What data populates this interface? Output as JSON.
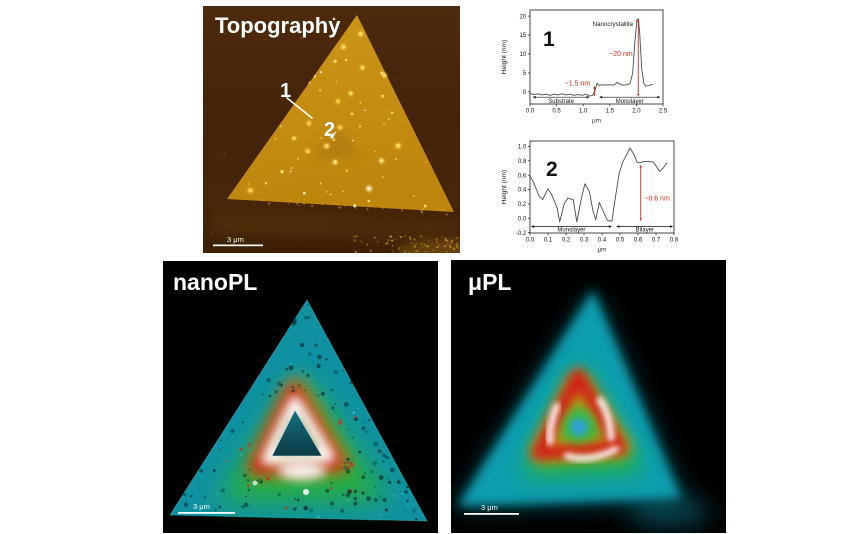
{
  "figure": {
    "background": "#ffffff"
  },
  "panels": {
    "topography": {
      "title": "Topography",
      "marker_1": "1",
      "marker_2": "2",
      "scale_bar": "3 μm"
    },
    "nanopl": {
      "title": "nanoPL",
      "scale_bar": "3 μm"
    },
    "upl": {
      "title": "μPL",
      "scale_bar": "3 μm"
    }
  },
  "colors": {
    "annotation_red": "#d42a1e",
    "profile_line": "#4a4a4a",
    "axis_black": "#1a1a1a",
    "topo_gold": "#c08a10",
    "topo_substrate": "#46240a",
    "pl_cyan": "#12a0b2",
    "pl_green": "#2db32d",
    "pl_red": "#cf1f14",
    "pl_hot_white": "#ffffff"
  },
  "chart_data": [
    {
      "id": "profile1",
      "type": "line",
      "label": "1",
      "xlabel": "μm",
      "ylabel": "Height (nm)",
      "xlim": [
        0,
        2.5
      ],
      "ylim": [
        -3.2,
        21.6
      ],
      "xticks": [
        {
          "v": 0.0,
          "label": "0.0"
        },
        {
          "v": 0.5,
          "label": "0.5"
        },
        {
          "v": 1.0,
          "label": "1.0"
        },
        {
          "v": 1.5,
          "label": "1.5"
        },
        {
          "v": 2.0,
          "label": "2.0"
        },
        {
          "v": 2.5,
          "label": "2.5"
        }
      ],
      "yticks": [
        {
          "v": 0,
          "label": "0"
        },
        {
          "v": 5,
          "label": "5"
        },
        {
          "v": 10,
          "label": "10"
        },
        {
          "v": 15,
          "label": "15"
        },
        {
          "v": 20,
          "label": "20"
        }
      ],
      "points": [
        [
          0,
          -0.4
        ],
        [
          0.08,
          -0.7
        ],
        [
          0.15,
          -0.5
        ],
        [
          0.22,
          -0.8
        ],
        [
          0.3,
          -0.6
        ],
        [
          0.38,
          -0.9
        ],
        [
          0.45,
          -0.6
        ],
        [
          0.52,
          -0.8
        ],
        [
          0.6,
          -0.5
        ],
        [
          0.68,
          -0.8
        ],
        [
          0.75,
          -0.6
        ],
        [
          0.82,
          -0.9
        ],
        [
          0.9,
          -0.7
        ],
        [
          0.98,
          -0.9
        ],
        [
          1.05,
          -0.6
        ],
        [
          1.12,
          -1.1
        ],
        [
          1.18,
          -0.9
        ],
        [
          1.22,
          0.3
        ],
        [
          1.26,
          2.3
        ],
        [
          1.3,
          1.7
        ],
        [
          1.36,
          1.9
        ],
        [
          1.42,
          1.8
        ],
        [
          1.5,
          1.9
        ],
        [
          1.58,
          1.8
        ],
        [
          1.64,
          2.5
        ],
        [
          1.7,
          1.9
        ],
        [
          1.76,
          1.8
        ],
        [
          1.82,
          1.9
        ],
        [
          1.88,
          2.2
        ],
        [
          1.93,
          5
        ],
        [
          1.97,
          13
        ],
        [
          2.01,
          19
        ],
        [
          2.035,
          19.3
        ],
        [
          2.06,
          16
        ],
        [
          2.1,
          6
        ],
        [
          2.14,
          2.2
        ],
        [
          2.18,
          1.5
        ],
        [
          2.24,
          1.7
        ],
        [
          2.3,
          2
        ]
      ],
      "annotations": [
        {
          "text": "Nanocrystallite",
          "x": 1.94,
          "y": 17.4,
          "anchor": "end",
          "color": "#1a1a1a",
          "size": 6.2
        },
        {
          "text": "~20 nm",
          "x": 1.93,
          "y": 9.4,
          "anchor": "end",
          "color": "#d42a1e",
          "size": 7
        },
        {
          "text": "~1.5 nm",
          "x": 1.13,
          "y": 1.7,
          "anchor": "end",
          "color": "#d42a1e",
          "size": 7
        }
      ],
      "varrows": [
        {
          "x": 2.035,
          "y1": -1.3,
          "y2": 19.2,
          "color": "#d42a1e"
        },
        {
          "x": 1.21,
          "y1": -1.2,
          "y2": 1.6,
          "color": "#d42a1e"
        }
      ],
      "regions": [
        {
          "text": "Substrate",
          "x1": 0.05,
          "x2": 1.12,
          "y_line": -1.4,
          "y_text": -2.9
        },
        {
          "text": "Monolayer",
          "x1": 1.3,
          "x2": 2.45,
          "y_line": -1.4,
          "y_text": -2.9
        }
      ]
    },
    {
      "id": "profile2",
      "type": "line",
      "label": "2",
      "xlabel": "μm",
      "ylabel": "Height (nm)",
      "xlim": [
        0,
        0.8
      ],
      "ylim": [
        -0.205,
        1.075
      ],
      "xticks": [
        {
          "v": 0.0,
          "label": "0.0"
        },
        {
          "v": 0.1,
          "label": "0.1"
        },
        {
          "v": 0.2,
          "label": "0.2"
        },
        {
          "v": 0.3,
          "label": "0.3"
        },
        {
          "v": 0.4,
          "label": "0.4"
        },
        {
          "v": 0.5,
          "label": "0.5"
        },
        {
          "v": 0.6,
          "label": "0.6"
        },
        {
          "v": 0.7,
          "label": "0.7"
        },
        {
          "v": 0.8,
          "label": "0.8"
        }
      ],
      "yticks": [
        {
          "v": -0.2,
          "label": "-0.2"
        },
        {
          "v": 0.0,
          "label": "0.0"
        },
        {
          "v": 0.2,
          "label": "0.2"
        },
        {
          "v": 0.4,
          "label": "0.4"
        },
        {
          "v": 0.6,
          "label": "0.6"
        },
        {
          "v": 0.8,
          "label": "0.8"
        },
        {
          "v": 1.0,
          "label": "1.0"
        }
      ],
      "points": [
        [
          0,
          0.59
        ],
        [
          0.02,
          0.5
        ],
        [
          0.05,
          0.31
        ],
        [
          0.07,
          0.26
        ],
        [
          0.1,
          0.41
        ],
        [
          0.12,
          0.33
        ],
        [
          0.15,
          0.15
        ],
        [
          0.165,
          -0.05
        ],
        [
          0.19,
          0.2
        ],
        [
          0.21,
          0.28
        ],
        [
          0.24,
          0.26
        ],
        [
          0.26,
          -0.05
        ],
        [
          0.285,
          0.27
        ],
        [
          0.305,
          0.48
        ],
        [
          0.33,
          0.37
        ],
        [
          0.35,
          0.1
        ],
        [
          0.365,
          -0.02
        ],
        [
          0.385,
          0.22
        ],
        [
          0.41,
          0.08
        ],
        [
          0.43,
          -0.03
        ],
        [
          0.455,
          -0.04
        ],
        [
          0.475,
          0.3
        ],
        [
          0.495,
          0.62
        ],
        [
          0.515,
          0.78
        ],
        [
          0.54,
          0.9
        ],
        [
          0.555,
          0.98
        ],
        [
          0.575,
          0.9
        ],
        [
          0.595,
          0.78
        ],
        [
          0.61,
          0.77
        ],
        [
          0.63,
          0.79
        ],
        [
          0.66,
          0.79
        ],
        [
          0.685,
          0.78
        ],
        [
          0.7,
          0.73
        ],
        [
          0.72,
          0.65
        ],
        [
          0.74,
          0.7
        ],
        [
          0.76,
          0.77
        ]
      ],
      "annotations": [
        {
          "text": "~0.6 nm",
          "x": 0.635,
          "y": 0.25,
          "anchor": "start",
          "color": "#d42a1e",
          "size": 7
        }
      ],
      "varrows": [
        {
          "x": 0.615,
          "y1": -0.04,
          "y2": 0.745,
          "color": "#d42a1e"
        }
      ],
      "regions": [
        {
          "text": "Monolayer",
          "x1": 0.005,
          "x2": 0.455,
          "y_line": -0.115,
          "y_text": -0.185
        },
        {
          "text": "Bilayer",
          "x1": 0.48,
          "x2": 0.795,
          "y_line": -0.115,
          "y_text": -0.185
        }
      ]
    }
  ]
}
